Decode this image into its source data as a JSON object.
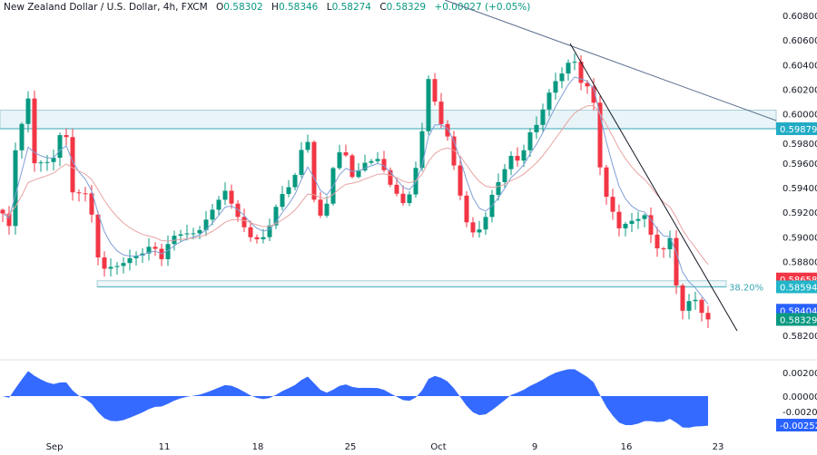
{
  "header": {
    "symbol_title": "New Zealand Dollar / U.S. Dollar, 4h, FXCM",
    "open_label": "O",
    "open": "0.58302",
    "high_label": "H",
    "high": "0.58346",
    "low_label": "L",
    "low": "0.58274",
    "close_label": "C",
    "close": "0.58329",
    "change": "+0.00027 (+0.05%)"
  },
  "colors": {
    "up": "#089981",
    "down": "#f23645",
    "ma_fast": "#7f9fd6",
    "ma_slow": "#e8a3a3",
    "oscillator": "#2962ff",
    "zone": "#5fb8c4",
    "trendline": "#131722",
    "trendline_long": "#5b6f8f"
  },
  "chart_data": {
    "type": "candlestick",
    "instrument": "NZD/USD",
    "timeframe": "4h",
    "price_axis": {
      "min": 0.5815,
      "max": 0.6085,
      "ticks": [
        "0.60800",
        "0.60600",
        "0.60400",
        "0.60200",
        "0.60000",
        "0.59800",
        "0.59600",
        "0.59400",
        "0.59200",
        "0.59000",
        "0.58800",
        "0.58200"
      ]
    },
    "time_axis": {
      "ticks": [
        "Sep",
        "11",
        "18",
        "25",
        "Oct",
        "9",
        "16",
        "23"
      ]
    },
    "price_path": [
      [
        0,
        0.5919
      ],
      [
        1.5,
        0.5901
      ],
      [
        2,
        0.5967
      ],
      [
        4,
        0.6008
      ],
      [
        5,
        0.5956
      ],
      [
        7,
        0.596
      ],
      [
        8.3,
        0.5967
      ],
      [
        9.7,
        0.6004
      ],
      [
        10.7,
        0.5941
      ],
      [
        13.5,
        0.5938
      ],
      [
        15,
        0.5883
      ],
      [
        15.7,
        0.5872
      ],
      [
        18.5,
        0.5872
      ],
      [
        20,
        0.5879
      ],
      [
        22,
        0.5886
      ],
      [
        23.5,
        0.5897
      ],
      [
        25,
        0.5886
      ],
      [
        26.5,
        0.5905
      ],
      [
        28.5,
        0.5905
      ],
      [
        30.7,
        0.5901
      ],
      [
        32.8,
        0.5916
      ],
      [
        35,
        0.5934
      ],
      [
        37,
        0.5916
      ],
      [
        39.3,
        0.5901
      ],
      [
        41.4,
        0.5905
      ],
      [
        43.5,
        0.5934
      ],
      [
        45.7,
        0.5942
      ],
      [
        47.8,
        0.5982
      ],
      [
        49.3,
        0.5912
      ],
      [
        50.7,
        0.5916
      ],
      [
        52,
        0.5956
      ],
      [
        53.5,
        0.5978
      ],
      [
        55,
        0.5953
      ],
      [
        57,
        0.5964
      ],
      [
        59.3,
        0.5964
      ],
      [
        60.7,
        0.5942
      ],
      [
        62,
        0.5931
      ],
      [
        63.5,
        0.5919
      ],
      [
        65,
        0.5953
      ],
      [
        66.4,
        0.5997
      ],
      [
        67.1,
        0.6034
      ],
      [
        68.5,
        0.6
      ],
      [
        70,
        0.5986
      ],
      [
        71.4,
        0.5953
      ],
      [
        72.8,
        0.5916
      ],
      [
        74.3,
        0.5901
      ],
      [
        75.7,
        0.5908
      ],
      [
        77,
        0.593
      ],
      [
        78.5,
        0.5945
      ],
      [
        80,
        0.5963
      ],
      [
        81.4,
        0.596
      ],
      [
        82.8,
        0.5986
      ],
      [
        84.3,
        0.5997
      ],
      [
        85.7,
        0.6019
      ],
      [
        87,
        0.603
      ],
      [
        88.5,
        0.6037
      ],
      [
        89.7,
        0.6048
      ],
      [
        90.7,
        0.6023
      ],
      [
        92.8,
        0.6015
      ],
      [
        94.3,
        0.5937
      ],
      [
        95.7,
        0.5923
      ],
      [
        97,
        0.5908
      ],
      [
        98.5,
        0.5916
      ],
      [
        100,
        0.5919
      ],
      [
        101.4,
        0.5923
      ],
      [
        102,
        0.5905
      ],
      [
        103.5,
        0.5886
      ],
      [
        105,
        0.5897
      ],
      [
        106,
        0.5857
      ],
      [
        107.4,
        0.5827
      ],
      [
        108.5,
        0.5857
      ],
      [
        109.3,
        0.5838
      ],
      [
        110.3,
        0.5835
      ],
      [
        111,
        0.58329
      ]
    ],
    "resistance_zone": {
      "low": 0.59879,
      "high": 0.6003,
      "label": "0.59879"
    },
    "support_zone": {
      "low": 0.58594,
      "high": 0.58658
    },
    "fib_label": "38.20%",
    "price_tags": [
      {
        "value": "0.58658",
        "color": "#f23645",
        "price": 0.58658
      },
      {
        "value": "0.58594",
        "color": "#22b5c9",
        "price": 0.58594
      },
      {
        "value": "0.58404",
        "color": "#2962ff",
        "price": 0.58404
      },
      {
        "value": "0.58329",
        "color": "#089981",
        "price": 0.58329
      }
    ],
    "oscillator": {
      "ticks": [
        "0.00200",
        "0.00000",
        "-0.00200"
      ],
      "last_value": "-0.00252",
      "range": [
        -0.0028,
        0.0026
      ]
    }
  }
}
